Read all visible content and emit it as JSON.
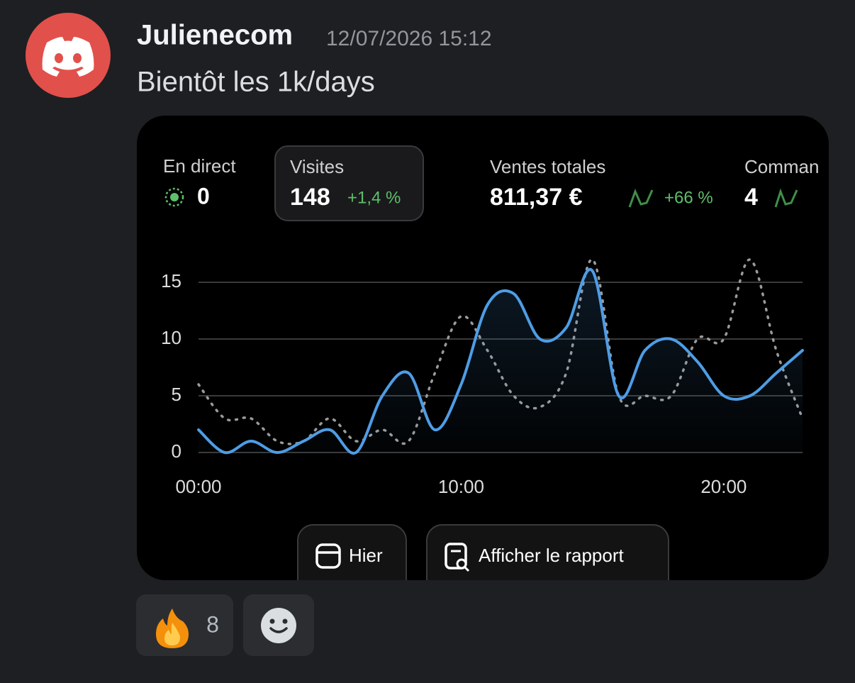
{
  "message": {
    "author": "Julienecom",
    "timestamp": "12/07/2026 15:12",
    "text": "Bientôt les 1k/days"
  },
  "stats": [
    {
      "label": "En direct",
      "value": "0"
    },
    {
      "label": "Visites",
      "value": "148",
      "change": "+1,4 %"
    },
    {
      "label": "Ventes totales",
      "value": "811,37 €",
      "change": "+66 %"
    },
    {
      "label": "Comman",
      "value": "4"
    }
  ],
  "chart_data": {
    "type": "line",
    "x": [
      0,
      1,
      2,
      3,
      4,
      5,
      6,
      7,
      8,
      9,
      10,
      11,
      12,
      13,
      14,
      15,
      16,
      17,
      18,
      19,
      20,
      21,
      22,
      23
    ],
    "xlim": [
      0,
      23
    ],
    "xticks": [
      {
        "value": 0,
        "label": "00:00"
      },
      {
        "value": 10,
        "label": "10:00"
      },
      {
        "value": 20,
        "label": "20:00"
      }
    ],
    "ylim": [
      0,
      15
    ],
    "yticks": [
      0,
      5,
      10,
      15
    ],
    "grid": true,
    "series": [
      {
        "color": "#4e9de6",
        "style": "solid",
        "values": [
          2,
          0,
          1,
          0,
          1,
          2,
          0,
          5,
          7,
          2,
          6,
          13,
          14,
          10,
          11,
          16,
          5,
          9,
          10,
          8,
          5,
          5,
          7,
          9
        ]
      },
      {
        "color": "#9a9a9a",
        "style": "dotted",
        "values": [
          6,
          3,
          3,
          1,
          1,
          3,
          1,
          2,
          1,
          7,
          12,
          9,
          5,
          4,
          7,
          17,
          5,
          5,
          5,
          10,
          10,
          17,
          9,
          3
        ]
      }
    ]
  },
  "buttons": [
    "Hier",
    "Afficher le rapport"
  ],
  "reactions": {
    "count": 8
  }
}
